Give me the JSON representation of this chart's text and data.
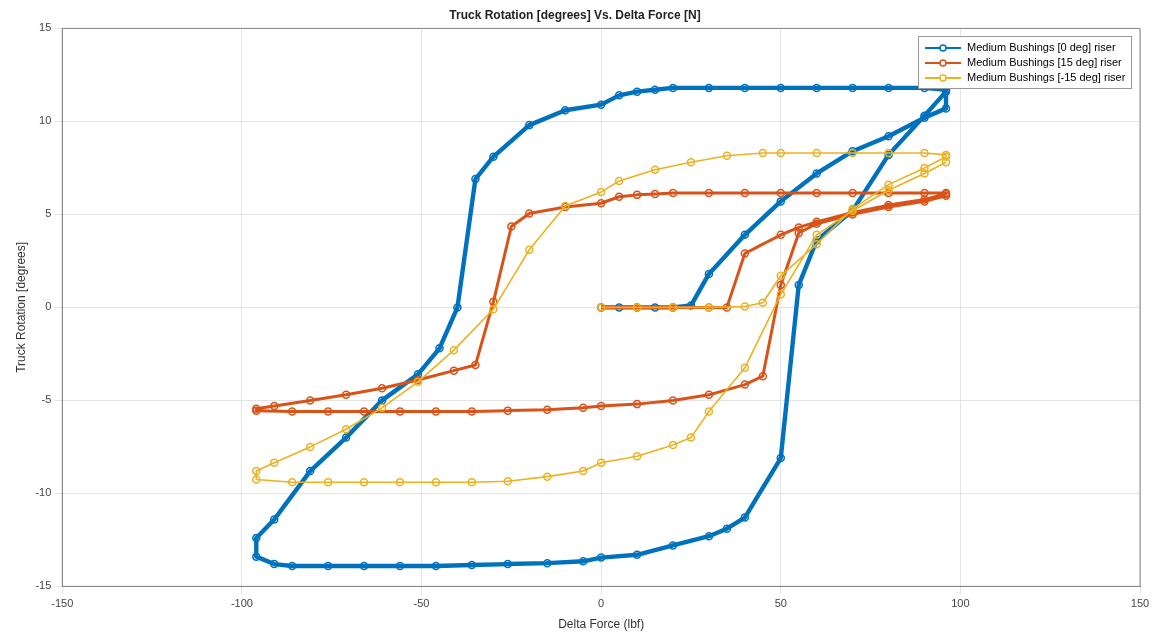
{
  "chart_data": {
    "type": "line",
    "title": "Truck Rotation [degrees] Vs. Delta Force [N]",
    "xlabel": "Delta Force (lbf)",
    "ylabel": "Truck Rotation [degrees]",
    "xlim": [
      -150,
      150
    ],
    "xticks": [
      -150,
      -100,
      -50,
      0,
      50,
      100,
      150
    ],
    "ylim": [
      -15,
      15
    ],
    "yticks": [
      -15,
      -10,
      -5,
      0,
      5,
      10,
      15
    ],
    "grid": true,
    "legend": "top right",
    "marker": "circle",
    "line_style": "solid",
    "series": [
      {
        "name": "Medium Bushings [0 deg] riser",
        "color": "#0072bd",
        "x": [
          0,
          5,
          10,
          15,
          20,
          25,
          30,
          40,
          50,
          60,
          70,
          80,
          90,
          96,
          96,
          90,
          80,
          70,
          60,
          50,
          40,
          30,
          20,
          15,
          10,
          5,
          0,
          -10,
          -20,
          -30,
          -35,
          -40,
          -45,
          -51,
          -61,
          -71,
          -81,
          -91,
          -96,
          -96,
          -91,
          -86,
          -76,
          -66,
          -56,
          -46,
          -36,
          -26,
          -15,
          -5,
          0,
          10,
          20,
          30,
          35,
          40,
          50,
          55,
          60,
          70,
          80,
          90,
          96
        ],
        "values": [
          0,
          0,
          0,
          0,
          0,
          0.1,
          1.8,
          3.9,
          5.7,
          7.2,
          8.4,
          9.2,
          10.2,
          10.7,
          11.7,
          11.8,
          11.8,
          11.8,
          11.8,
          11.8,
          11.8,
          11.8,
          11.8,
          11.7,
          11.6,
          11.4,
          10.9,
          10.6,
          9.8,
          8.1,
          6.9,
          0,
          -2.2,
          -3.6,
          -5,
          -7,
          -8.8,
          -11.4,
          -12.4,
          -13.4,
          -13.8,
          -13.9,
          -13.9,
          -13.9,
          -13.9,
          -13.9,
          -13.85,
          -13.8,
          -13.75,
          -13.65,
          -13.45,
          -13.3,
          -12.8,
          -12.3,
          -11.9,
          -11.3,
          -8.1,
          1.2,
          3.6,
          5.2,
          8.2,
          10.3,
          11.6
        ]
      },
      {
        "name": "Medium Bushings [15 deg] riser",
        "color": "#d95319",
        "x": [
          0,
          10,
          20,
          30,
          35,
          40,
          50,
          55,
          60,
          70,
          80,
          90,
          96,
          96,
          90,
          80,
          70,
          60,
          50,
          40,
          30,
          20,
          15,
          10,
          5,
          0,
          -10,
          -20,
          -25,
          -30,
          -35,
          -41,
          -51,
          -61,
          -71,
          -81,
          -91,
          -96,
          -96,
          -86,
          -76,
          -66,
          -56,
          -46,
          -36,
          -26,
          -15,
          -5,
          0,
          10,
          20,
          30,
          40,
          45,
          50,
          55,
          60,
          70,
          80,
          90,
          96
        ],
        "values": [
          0,
          0,
          0,
          0,
          0,
          2.9,
          3.9,
          4.3,
          4.6,
          5.1,
          5.5,
          5.8,
          6.1,
          6.15,
          6.15,
          6.15,
          6.15,
          6.15,
          6.15,
          6.15,
          6.15,
          6.15,
          6.1,
          6.05,
          5.95,
          5.6,
          5.4,
          5.05,
          4.35,
          0.3,
          -3.1,
          -3.4,
          -3.9,
          -4.35,
          -4.7,
          -5,
          -5.3,
          -5.45,
          -5.55,
          -5.6,
          -5.6,
          -5.6,
          -5.6,
          -5.6,
          -5.6,
          -5.55,
          -5.5,
          -5.4,
          -5.3,
          -5.2,
          -5,
          -4.7,
          -4.15,
          -3.7,
          1.2,
          4,
          4.5,
          5,
          5.4,
          5.7,
          6
        ]
      },
      {
        "name": "Medium Bushings [-15 deg] riser",
        "color": "#edb120",
        "x": [
          0,
          10,
          20,
          30,
          40,
          45,
          50,
          60,
          70,
          80,
          90,
          96,
          96,
          90,
          80,
          70,
          60,
          50,
          45,
          35,
          25,
          15,
          5,
          0,
          -10,
          -20,
          -30,
          -41,
          -51,
          -61,
          -71,
          -81,
          -91,
          -96,
          -96,
          -86,
          -76,
          -66,
          -56,
          -46,
          -36,
          -26,
          -15,
          -5,
          0,
          10,
          20,
          25,
          30,
          40,
          50,
          60,
          70,
          80,
          90,
          96
        ],
        "values": [
          0,
          0,
          0,
          0,
          0.05,
          0.25,
          1.7,
          3.4,
          5.3,
          6.6,
          7.5,
          8.1,
          8.2,
          8.3,
          8.3,
          8.3,
          8.3,
          8.3,
          8.3,
          8.15,
          7.8,
          7.4,
          6.8,
          6.2,
          5.45,
          3.1,
          -0.1,
          -2.3,
          -4,
          -5.4,
          -6.55,
          -7.5,
          -8.35,
          -8.8,
          -9.25,
          -9.4,
          -9.4,
          -9.4,
          -9.4,
          -9.4,
          -9.4,
          -9.35,
          -9.1,
          -8.8,
          -8.35,
          -8,
          -7.4,
          -7,
          -5.6,
          -3.25,
          0.7,
          3.9,
          5.2,
          6.3,
          7.2,
          7.8
        ]
      }
    ]
  }
}
